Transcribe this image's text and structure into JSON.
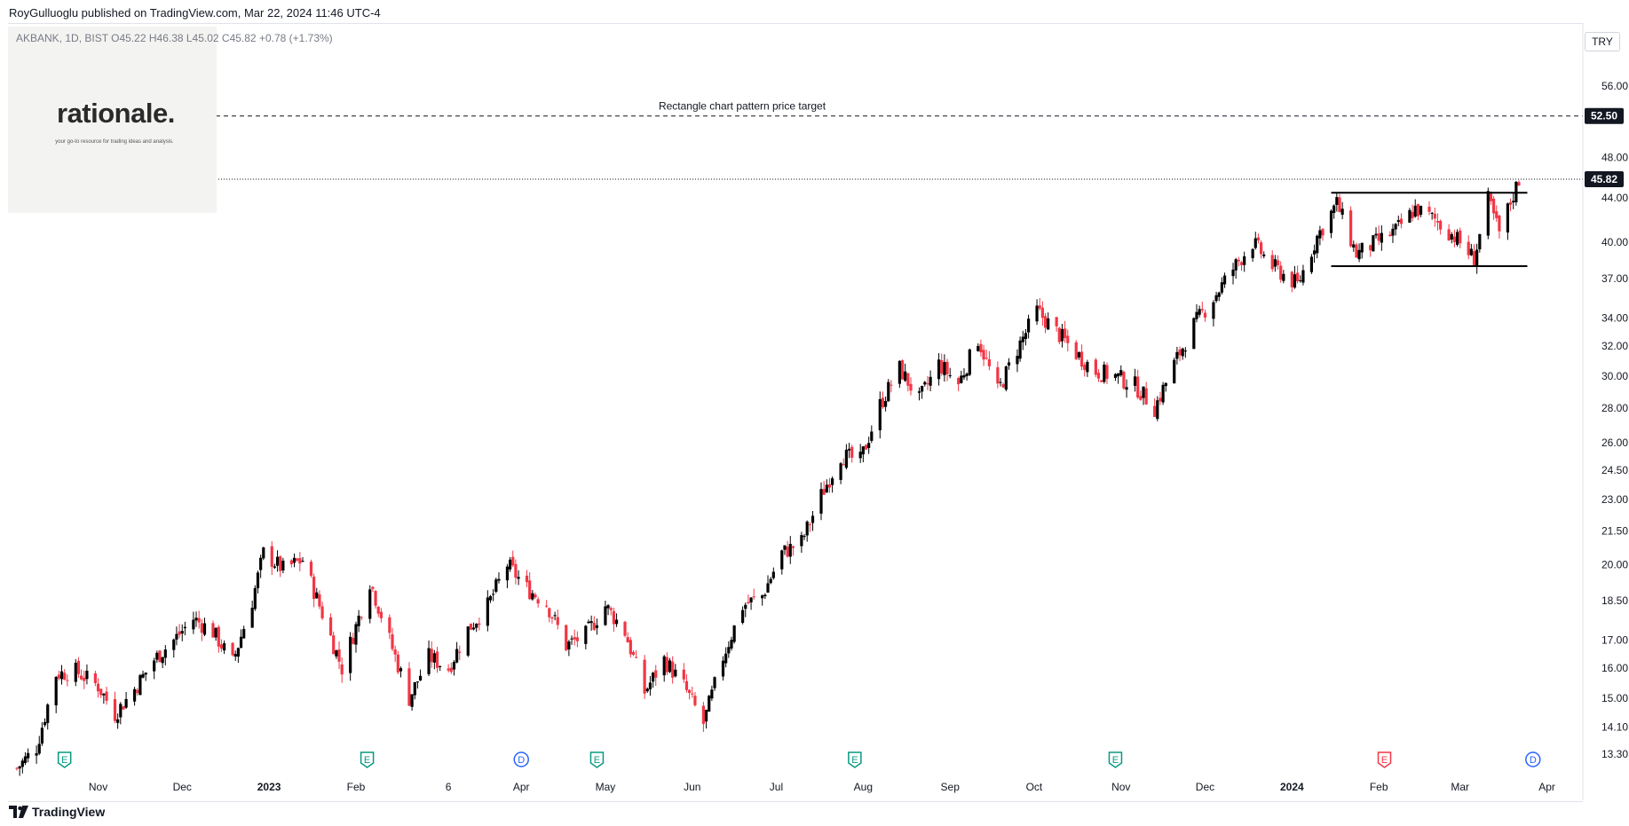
{
  "header": {
    "published": "RoyGulluoglu published on TradingView.com, Mar 22, 2024 11:46 UTC-4"
  },
  "legend": {
    "text": "AKBANK, 1D, BIST  O45.22  H46.38  L45.02  C45.82  +0.78 (+1.73%)"
  },
  "logo": {
    "name": "rationale.",
    "tagline": "your go-to resource for trading ideas and analysis."
  },
  "brand": {
    "name": "TradingView"
  },
  "currency": "TRY",
  "colors": {
    "up": "#000000",
    "down": "#f23645",
    "event_earnings": "#089981",
    "event_dividend": "#2962ff",
    "event_red": "#f23645"
  },
  "chart_data": {
    "type": "candlestick",
    "symbol": "AKBANK",
    "interval": "1D",
    "exchange": "BIST",
    "scale": "log",
    "y_ticks": [
      13.3,
      14.1,
      15.0,
      16.0,
      17.0,
      18.5,
      20.0,
      21.5,
      23.0,
      24.5,
      26.0,
      28.0,
      30.0,
      32.0,
      34.0,
      37.0,
      40.0,
      44.0,
      48.0,
      56.0
    ],
    "y_tick_labels": [
      "13.30",
      "14.10",
      "15.00",
      "16.00",
      "17.00",
      "18.50",
      "20.00",
      "21.50",
      "23.00",
      "24.50",
      "26.00",
      "28.00",
      "30.00",
      "32.00",
      "34.00",
      "37.00",
      "40.00",
      "44.00",
      "48.00",
      "56.00"
    ],
    "x_labels": [
      {
        "label": "Nov",
        "date": "2022-11-01"
      },
      {
        "label": "Dec",
        "date": "2022-12-01"
      },
      {
        "label": "2023",
        "date": "2023-01-01",
        "bold": true
      },
      {
        "label": "Feb",
        "date": "2023-02-01"
      },
      {
        "label": "6",
        "date": "2023-03-06"
      },
      {
        "label": "Apr",
        "date": "2023-04-01"
      },
      {
        "label": "May",
        "date": "2023-05-01"
      },
      {
        "label": "Jun",
        "date": "2023-06-01"
      },
      {
        "label": "Jul",
        "date": "2023-07-01"
      },
      {
        "label": "Aug",
        "date": "2023-08-01"
      },
      {
        "label": "Sep",
        "date": "2023-09-01"
      },
      {
        "label": "Oct",
        "date": "2023-10-01"
      },
      {
        "label": "Nov",
        "date": "2023-11-01"
      },
      {
        "label": "Dec",
        "date": "2023-12-01"
      },
      {
        "label": "2024",
        "date": "2024-01-01",
        "bold": true
      },
      {
        "label": "Feb",
        "date": "2024-02-01"
      },
      {
        "label": "Mar",
        "date": "2024-03-01"
      },
      {
        "label": "Apr",
        "date": "2024-04-01"
      }
    ],
    "price_path": [
      [
        "2022-10-03",
        12.9
      ],
      [
        "2022-10-10",
        13.5
      ],
      [
        "2022-10-17",
        15.8
      ],
      [
        "2022-10-24",
        15.9
      ],
      [
        "2022-11-01",
        15.4
      ],
      [
        "2022-11-07",
        14.5
      ],
      [
        "2022-11-14",
        15.3
      ],
      [
        "2022-11-21",
        16.3
      ],
      [
        "2022-11-28",
        17.0
      ],
      [
        "2022-12-05",
        17.8
      ],
      [
        "2022-12-12",
        17.3
      ],
      [
        "2022-12-19",
        16.2
      ],
      [
        "2022-12-26",
        18.5
      ],
      [
        "2022-12-30",
        20.5
      ],
      [
        "2023-01-06",
        19.8
      ],
      [
        "2023-01-13",
        20.2
      ],
      [
        "2023-01-20",
        18.0
      ],
      [
        "2023-01-27",
        16.0
      ],
      [
        "2023-02-01",
        17.5
      ],
      [
        "2023-02-06",
        19.3
      ],
      [
        "2023-02-13",
        17.0
      ],
      [
        "2023-02-20",
        15.0
      ],
      [
        "2023-02-27",
        16.4
      ],
      [
        "2023-03-06",
        16.0
      ],
      [
        "2023-03-13",
        17.4
      ],
      [
        "2023-03-20",
        18.3
      ],
      [
        "2023-03-27",
        20.0
      ],
      [
        "2023-04-03",
        19.0
      ],
      [
        "2023-04-10",
        18.4
      ],
      [
        "2023-04-17",
        16.8
      ],
      [
        "2023-04-24",
        17.2
      ],
      [
        "2023-05-01",
        18.3
      ],
      [
        "2023-05-08",
        17.3
      ],
      [
        "2023-05-15",
        15.2
      ],
      [
        "2023-05-22",
        16.3
      ],
      [
        "2023-05-29",
        15.4
      ],
      [
        "2023-06-05",
        14.2
      ],
      [
        "2023-06-12",
        16.4
      ],
      [
        "2023-06-19",
        18.3
      ],
      [
        "2023-06-26",
        18.7
      ],
      [
        "2023-07-03",
        20.5
      ],
      [
        "2023-07-10",
        21.0
      ],
      [
        "2023-07-17",
        23.2
      ],
      [
        "2023-07-24",
        25.3
      ],
      [
        "2023-07-31",
        25.0
      ],
      [
        "2023-08-07",
        28.2
      ],
      [
        "2023-08-14",
        30.5
      ],
      [
        "2023-08-21",
        28.5
      ],
      [
        "2023-08-28",
        30.8
      ],
      [
        "2023-09-04",
        29.5
      ],
      [
        "2023-09-11",
        32.5
      ],
      [
        "2023-09-18",
        29.0
      ],
      [
        "2023-09-25",
        31.8
      ],
      [
        "2023-10-02",
        34.5
      ],
      [
        "2023-10-09",
        33.0
      ],
      [
        "2023-10-16",
        31.5
      ],
      [
        "2023-10-23",
        30.3
      ],
      [
        "2023-10-30",
        30.0
      ],
      [
        "2023-11-06",
        29.4
      ],
      [
        "2023-11-13",
        28.0
      ],
      [
        "2023-11-20",
        30.8
      ],
      [
        "2023-11-27",
        33.5
      ],
      [
        "2023-12-04",
        35.5
      ],
      [
        "2023-12-11",
        37.8
      ],
      [
        "2023-12-18",
        40.0
      ],
      [
        "2023-12-25",
        38.0
      ],
      [
        "2024-01-03",
        36.5
      ],
      [
        "2024-01-10",
        40.5
      ],
      [
        "2024-01-17",
        43.5
      ],
      [
        "2024-01-24",
        39.0
      ],
      [
        "2024-01-31",
        40.0
      ],
      [
        "2024-02-07",
        41.0
      ],
      [
        "2024-02-14",
        43.0
      ],
      [
        "2024-02-21",
        42.0
      ],
      [
        "2024-02-28",
        40.5
      ],
      [
        "2024-03-06",
        38.6
      ],
      [
        "2024-03-11",
        43.8
      ],
      [
        "2024-03-15",
        40.8
      ],
      [
        "2024-03-22",
        45.82
      ]
    ],
    "last_price": 45.82,
    "last_price_label": "45.82",
    "target_price": 52.5,
    "target_price_label": "52.50",
    "annotation": "Rectangle chart pattern price target",
    "rectangle_pattern": {
      "start": "2024-01-15",
      "end": "2024-03-25",
      "top": 44.5,
      "bottom": 38.0
    },
    "events": [
      {
        "date": "2022-10-20",
        "type": "E",
        "kind": "earnings"
      },
      {
        "date": "2023-02-05",
        "type": "E",
        "kind": "earnings"
      },
      {
        "date": "2023-04-01",
        "type": "D",
        "kind": "dividend"
      },
      {
        "date": "2023-04-28",
        "type": "E",
        "kind": "earnings"
      },
      {
        "date": "2023-07-29",
        "type": "E",
        "kind": "earnings"
      },
      {
        "date": "2023-10-30",
        "type": "E",
        "kind": "earnings"
      },
      {
        "date": "2024-02-03",
        "type": "E",
        "kind": "future"
      },
      {
        "date": "2024-03-27",
        "type": "D",
        "kind": "dividend"
      }
    ],
    "x_range": [
      "2022-10-03",
      "2024-04-10"
    ],
    "y_range": [
      12.9,
      58.5
    ]
  }
}
